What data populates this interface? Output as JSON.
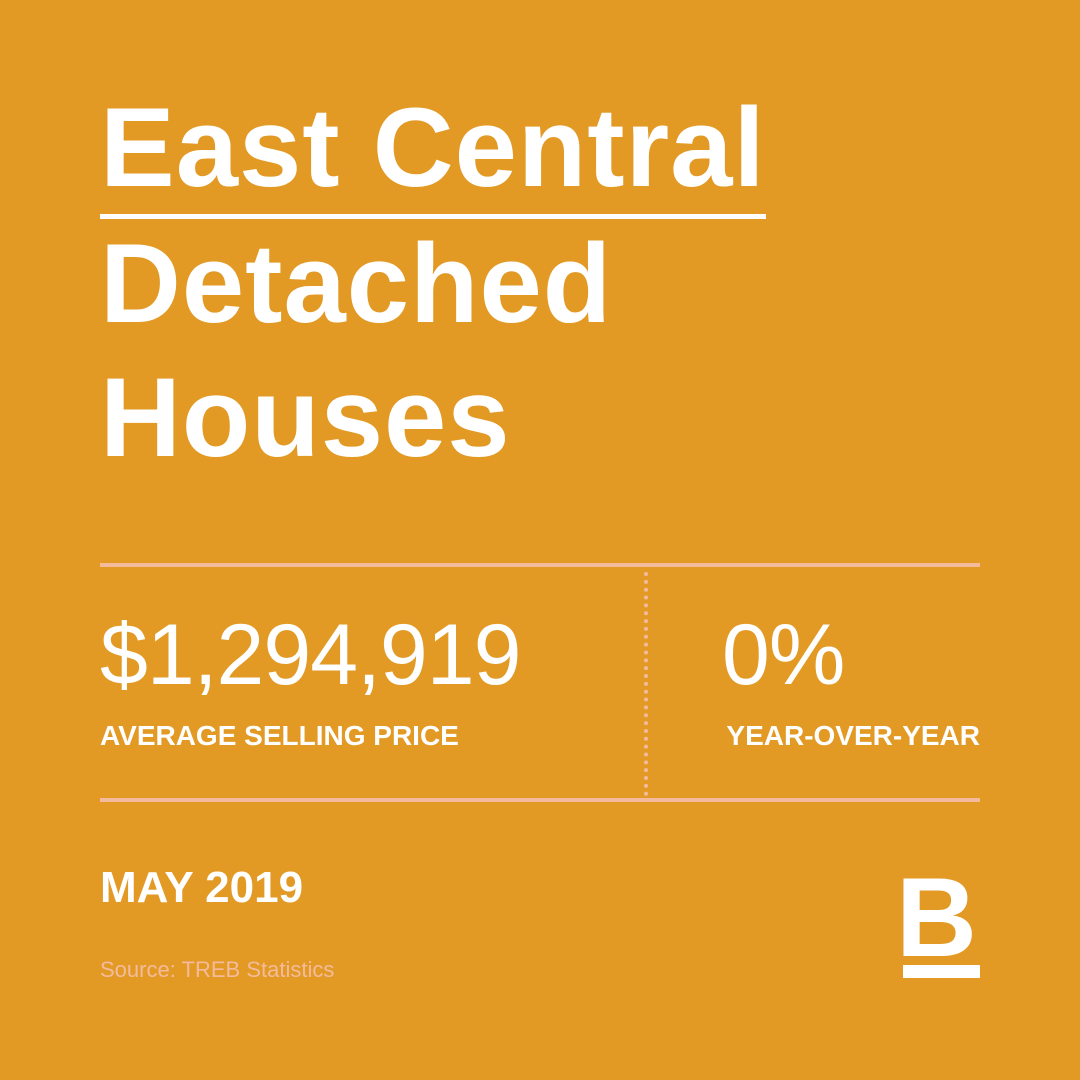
{
  "header": {
    "title_lines": [
      "East Central",
      "Detached",
      "Houses"
    ]
  },
  "stats": [
    {
      "value": "$1,294,919",
      "label": "AVERAGE SELLING PRICE"
    },
    {
      "value": "0%",
      "label": "YEAR-OVER-YEAR"
    }
  ],
  "footer": {
    "date": "MAY 2019",
    "source": "Source: TREB Statistics",
    "logo": "B"
  }
}
